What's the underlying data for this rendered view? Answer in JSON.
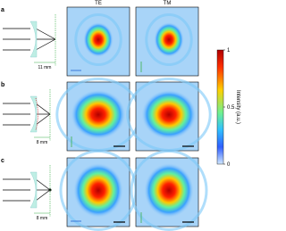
{
  "panels": [
    {
      "label": "a",
      "distance": "11 mm"
    },
    {
      "label": "b",
      "distance": "8 mm"
    },
    {
      "label": "c",
      "distance": "8 mm"
    }
  ],
  "columns": [
    "TE",
    "TM"
  ],
  "colorbar": {
    "label": "Intensity (a.u.)",
    "ticks": [
      "1",
      "0.5",
      "0"
    ]
  }
}
